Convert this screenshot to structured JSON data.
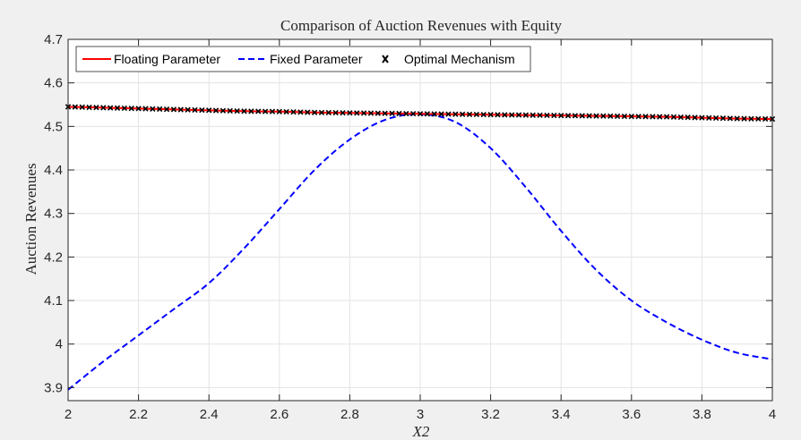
{
  "chart_data": {
    "type": "line",
    "title": "Comparison of Auction Revenues with Equity",
    "xlabel": "X2",
    "ylabel": "Auction Revenues",
    "xlim": [
      2,
      4
    ],
    "ylim": [
      3.87,
      4.7
    ],
    "x_ticks": [
      2,
      2.2,
      2.4,
      2.6,
      2.8,
      3,
      3.2,
      3.4,
      3.6,
      3.8,
      4
    ],
    "x_tick_labels": [
      "2",
      "2.2",
      "2.4",
      "2.6",
      "2.8",
      "3",
      "3.2",
      "3.4",
      "3.6",
      "3.8",
      "4"
    ],
    "y_ticks": [
      3.9,
      4,
      4.1,
      4.2,
      4.3,
      4.4,
      4.5,
      4.6,
      4.7
    ],
    "y_tick_labels": [
      "3.9",
      "4",
      "4.1",
      "4.2",
      "4.3",
      "4.4",
      "4.5",
      "4.6",
      "4.7"
    ],
    "grid": true,
    "legend_position": "top-left",
    "x": [
      2.0,
      2.1,
      2.2,
      2.3,
      2.4,
      2.5,
      2.6,
      2.7,
      2.8,
      2.9,
      3.0,
      3.1,
      3.2,
      3.3,
      3.4,
      3.5,
      3.6,
      3.7,
      3.8,
      3.9,
      4.0
    ],
    "series": [
      {
        "name": "Floating Parameter",
        "color": "#ff0000",
        "style": "solid",
        "values": [
          4.545,
          4.543,
          4.541,
          4.539,
          4.537,
          4.535,
          4.534,
          4.532,
          4.531,
          4.53,
          4.529,
          4.528,
          4.527,
          4.526,
          4.525,
          4.524,
          4.523,
          4.522,
          4.52,
          4.518,
          4.517
        ]
      },
      {
        "name": "Fixed Parameter",
        "color": "#0000ff",
        "style": "dashed",
        "values": [
          3.895,
          3.96,
          4.02,
          4.08,
          4.14,
          4.22,
          4.31,
          4.4,
          4.47,
          4.515,
          4.528,
          4.51,
          4.45,
          4.36,
          4.26,
          4.17,
          4.1,
          4.05,
          4.01,
          3.98,
          3.965
        ]
      },
      {
        "name": "Optimal Mechanism",
        "color": "#000000",
        "style": "markers",
        "marker": "x",
        "values": [
          4.545,
          4.543,
          4.541,
          4.539,
          4.537,
          4.535,
          4.534,
          4.532,
          4.531,
          4.53,
          4.529,
          4.528,
          4.527,
          4.526,
          4.525,
          4.524,
          4.523,
          4.522,
          4.52,
          4.518,
          4.517
        ]
      }
    ]
  }
}
